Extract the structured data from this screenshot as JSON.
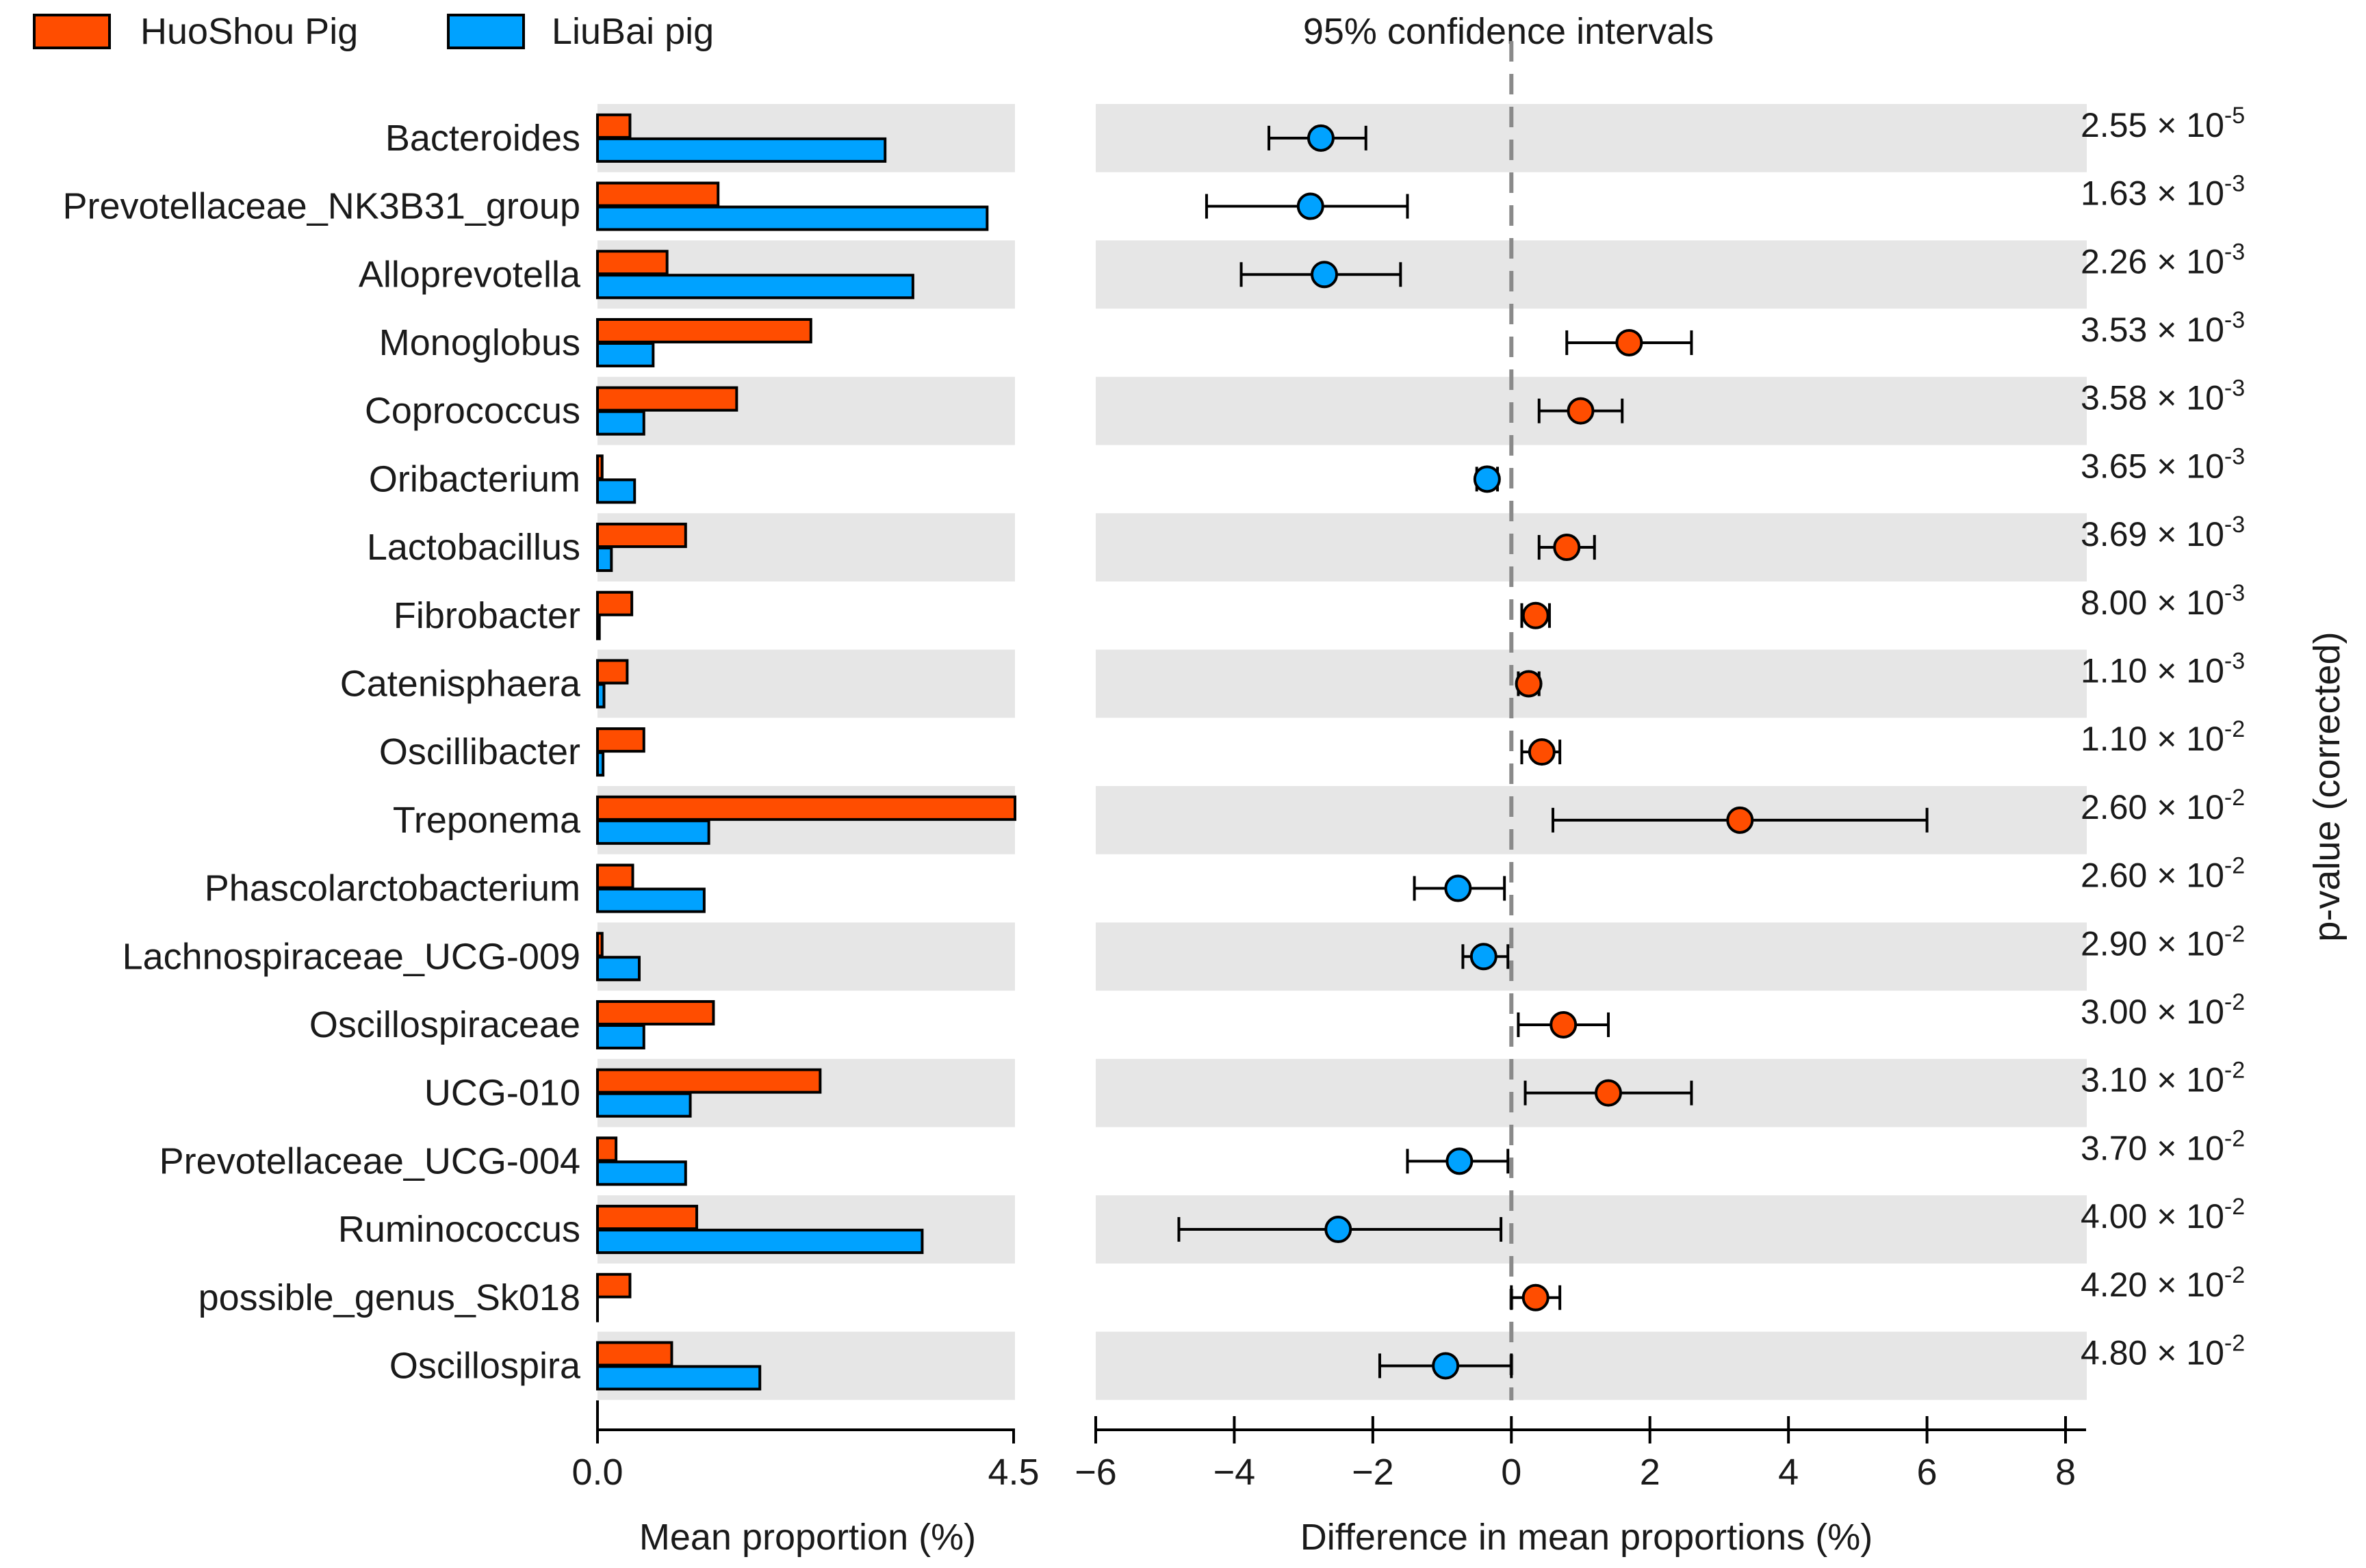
{
  "chart_data": {
    "type": "extended-error-bar",
    "legend": [
      {
        "name": "HuoShou Pig",
        "color": "#ff4d00"
      },
      {
        "name": "LiuBai pig",
        "color": "#00a2ff"
      }
    ],
    "title": "95% confidence intervals",
    "left_xlabel": "Mean proportion (%)",
    "right_xlabel": "Difference in mean proportions (%)",
    "pvalue_label": "p-value (corrected)",
    "left_xlim": [
      0,
      4.5
    ],
    "left_ticks": [
      "0.0",
      "4.5"
    ],
    "right_xlim": [
      -6,
      8
    ],
    "right_ticks": [
      "−6",
      "−4",
      "−2",
      "0",
      "2",
      "4",
      "6",
      "8"
    ],
    "right_tick_values": [
      -6,
      -4,
      -2,
      0,
      2,
      4,
      6,
      8
    ],
    "bar_colors": {
      "huoshou": "#ff4d00",
      "liubai": "#00a2ff",
      "stripe": "#e6e6e6"
    },
    "genera": [
      {
        "name": "Bacteroides",
        "huoshou": 0.35,
        "liubai": 3.1,
        "diff": -2.75,
        "ci": [
          -3.5,
          -2.1
        ],
        "p_mant": "2.55",
        "p_exp": "-5"
      },
      {
        "name": "Prevotellaceae_NK3B31_group",
        "huoshou": 1.3,
        "liubai": 4.2,
        "diff": -2.9,
        "ci": [
          -4.4,
          -1.5
        ],
        "p_mant": "1.63",
        "p_exp": "-3"
      },
      {
        "name": "Alloprevotella",
        "huoshou": 0.75,
        "liubai": 3.4,
        "diff": -2.7,
        "ci": [
          -3.9,
          -1.6
        ],
        "p_mant": "2.26",
        "p_exp": "-3"
      },
      {
        "name": "Monoglobus",
        "huoshou": 2.3,
        "liubai": 0.6,
        "diff": 1.7,
        "ci": [
          0.8,
          2.6
        ],
        "p_mant": "3.53",
        "p_exp": "-3"
      },
      {
        "name": "Coprococcus",
        "huoshou": 1.5,
        "liubai": 0.5,
        "diff": 1.0,
        "ci": [
          0.4,
          1.6
        ],
        "p_mant": "3.58",
        "p_exp": "-3"
      },
      {
        "name": "Oribacterium",
        "huoshou": 0.05,
        "liubai": 0.4,
        "diff": -0.35,
        "ci": [
          -0.5,
          -0.2
        ],
        "p_mant": "3.65",
        "p_exp": "-3"
      },
      {
        "name": "Lactobacillus",
        "huoshou": 0.95,
        "liubai": 0.15,
        "diff": 0.8,
        "ci": [
          0.4,
          1.2
        ],
        "p_mant": "3.69",
        "p_exp": "-3"
      },
      {
        "name": "Fibrobacter",
        "huoshou": 0.37,
        "liubai": 0.02,
        "diff": 0.35,
        "ci": [
          0.15,
          0.55
        ],
        "p_mant": "8.00",
        "p_exp": "-3"
      },
      {
        "name": "Catenisphaera",
        "huoshou": 0.32,
        "liubai": 0.07,
        "diff": 0.25,
        "ci": [
          0.1,
          0.4
        ],
        "p_mant": "1.10",
        "p_exp": "-3"
      },
      {
        "name": "Oscillibacter",
        "huoshou": 0.5,
        "liubai": 0.06,
        "diff": 0.44,
        "ci": [
          0.15,
          0.7
        ],
        "p_mant": "1.10",
        "p_exp": "-2"
      },
      {
        "name": "Treponema",
        "huoshou": 4.5,
        "liubai": 1.2,
        "diff": 3.3,
        "ci": [
          0.6,
          6.0
        ],
        "p_mant": "2.60",
        "p_exp": "-2"
      },
      {
        "name": "Phascolarctobacterium",
        "huoshou": 0.38,
        "liubai": 1.15,
        "diff": -0.77,
        "ci": [
          -1.4,
          -0.1
        ],
        "p_mant": "2.60",
        "p_exp": "-2"
      },
      {
        "name": "Lachnospiraceae_UCG-009",
        "huoshou": 0.05,
        "liubai": 0.45,
        "diff": -0.4,
        "ci": [
          -0.7,
          -0.05
        ],
        "p_mant": "2.90",
        "p_exp": "-2"
      },
      {
        "name": "Oscillospiraceae",
        "huoshou": 1.25,
        "liubai": 0.5,
        "diff": 0.75,
        "ci": [
          0.1,
          1.4
        ],
        "p_mant": "3.00",
        "p_exp": "-2"
      },
      {
        "name": "UCG-010",
        "huoshou": 2.4,
        "liubai": 1.0,
        "diff": 1.4,
        "ci": [
          0.2,
          2.6
        ],
        "p_mant": "3.10",
        "p_exp": "-2"
      },
      {
        "name": "Prevotellaceae_UCG-004",
        "huoshou": 0.2,
        "liubai": 0.95,
        "diff": -0.75,
        "ci": [
          -1.5,
          -0.05
        ],
        "p_mant": "3.70",
        "p_exp": "-2"
      },
      {
        "name": "Ruminococcus",
        "huoshou": 1.07,
        "liubai": 3.5,
        "diff": -2.5,
        "ci": [
          -4.8,
          -0.15
        ],
        "p_mant": "4.00",
        "p_exp": "-2"
      },
      {
        "name": "possible_genus_Sk018",
        "huoshou": 0.35,
        "liubai": 0.0,
        "diff": 0.35,
        "ci": [
          0.0,
          0.7
        ],
        "p_mant": "4.20",
        "p_exp": "-2"
      },
      {
        "name": "Oscillospira",
        "huoshou": 0.8,
        "liubai": 1.75,
        "diff": -0.95,
        "ci": [
          -1.9,
          0.0
        ],
        "p_mant": "4.80",
        "p_exp": "-2"
      }
    ]
  }
}
